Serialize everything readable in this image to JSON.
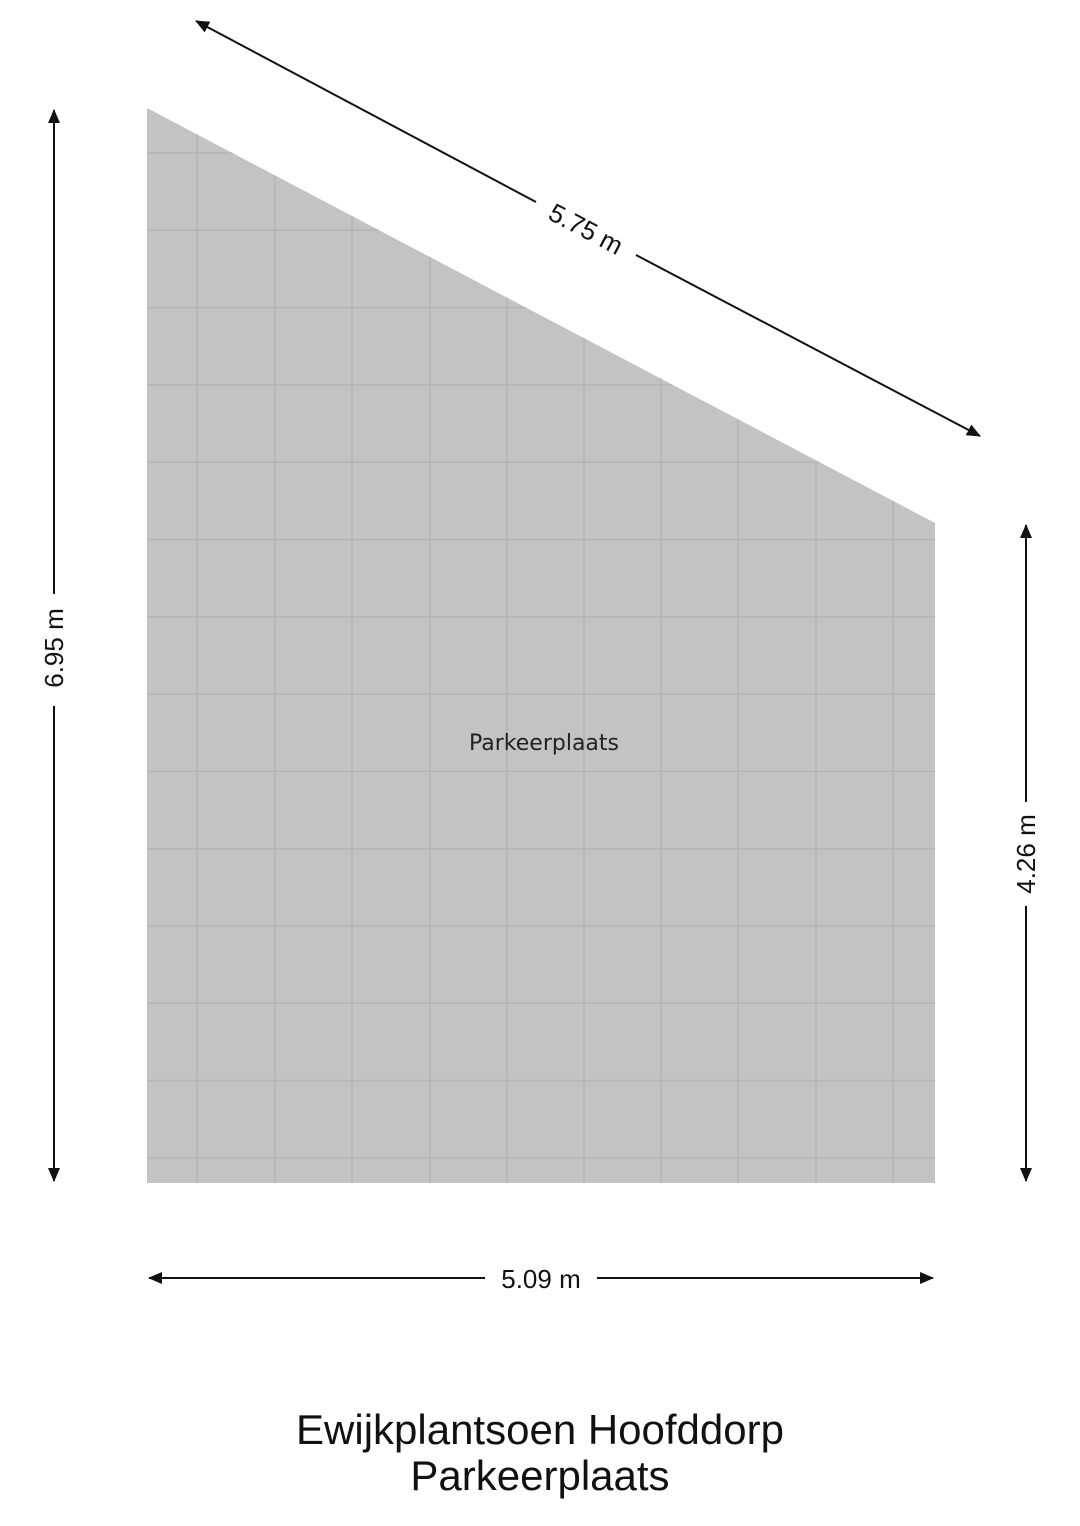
{
  "room": {
    "label": "Parkeerplaats",
    "floor_color": "#c3c3c3",
    "tile_line_color": "#b4b4b4"
  },
  "dimensions": {
    "left": "6.95 m",
    "right": "4.26 m",
    "bottom": "5.09 m",
    "diagonal": "5.75 m"
  },
  "caption": {
    "line1": "Ewijkplantsoen Hoofddorp",
    "line2": "Parkeerplaats"
  }
}
